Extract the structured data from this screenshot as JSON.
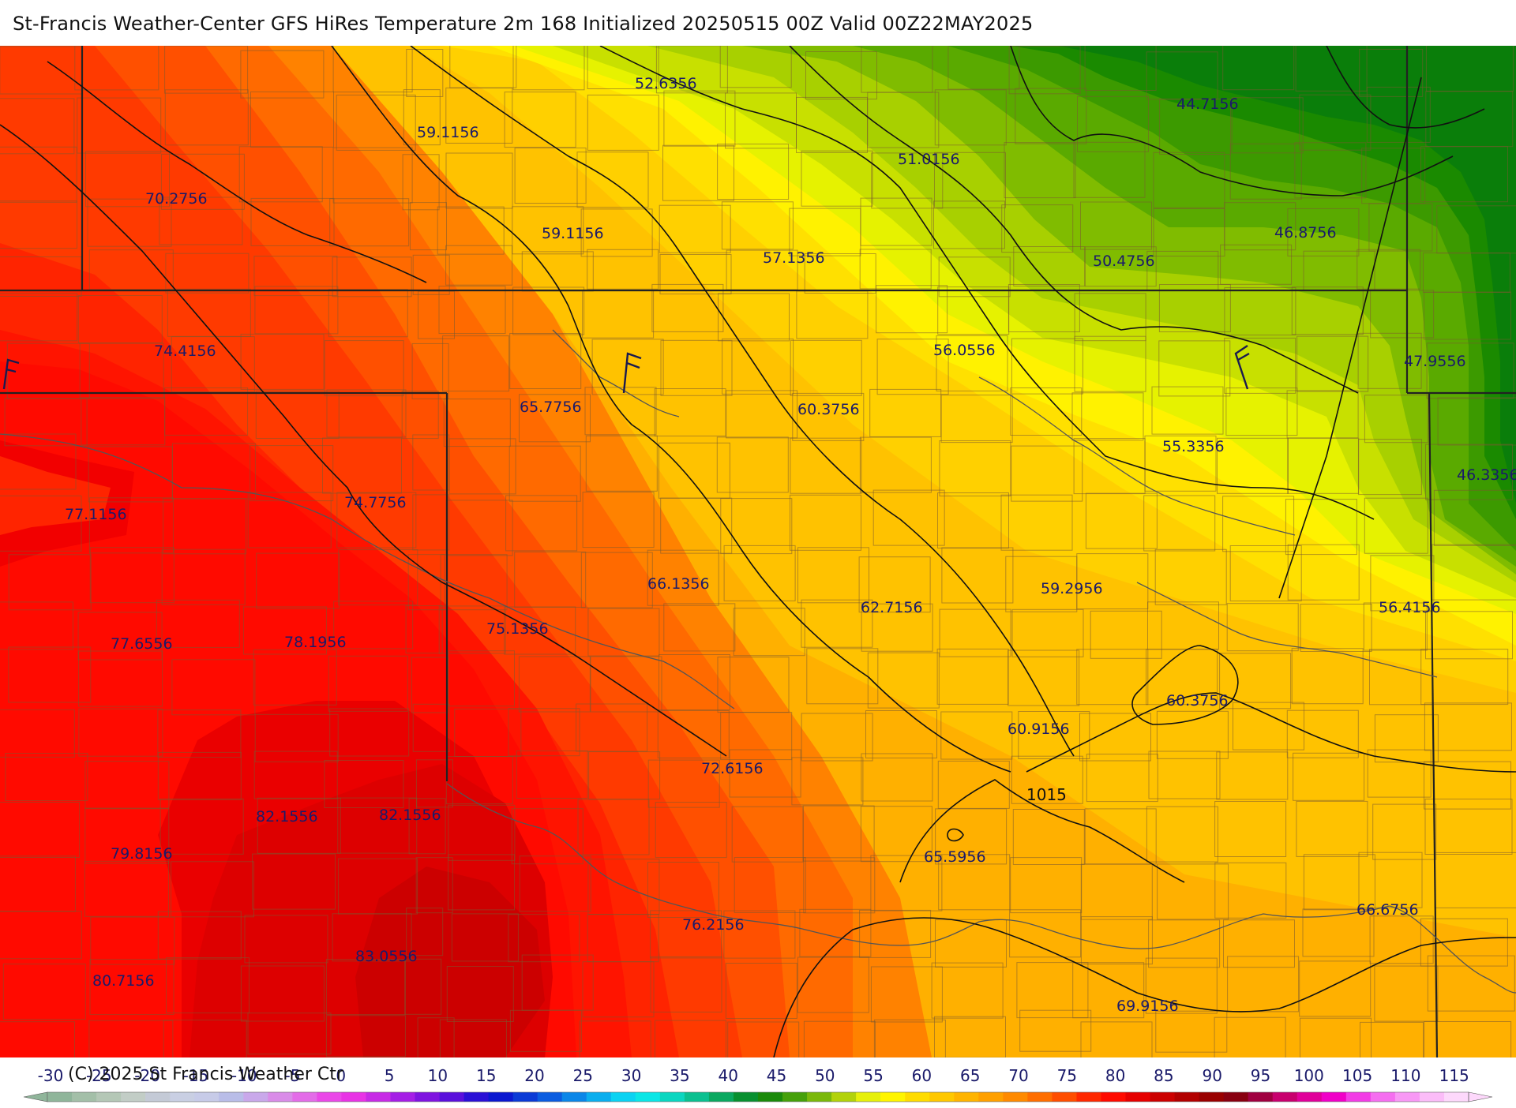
{
  "title": "St-Francis Weather-Center GFS HiRes Temperature 2m  168 Initialized 20250515 00Z Valid 00Z22MAY2025",
  "copyright": "(C) 2025 St Francis Weather Ctr",
  "isobar_label": "1015",
  "temperature_labels": [
    {
      "text": "52.6356"
    },
    {
      "text": "44.7156"
    },
    {
      "text": "59.1156"
    },
    {
      "text": "51.0156"
    },
    {
      "text": "70.2756"
    },
    {
      "text": "59.1156"
    },
    {
      "text": "57.1356"
    },
    {
      "text": "46.8756"
    },
    {
      "text": "50.4756"
    },
    {
      "text": "74.4156"
    },
    {
      "text": "56.0556"
    },
    {
      "text": "47.9556"
    },
    {
      "text": "65.7756"
    },
    {
      "text": "60.3756"
    },
    {
      "text": "55.3356"
    },
    {
      "text": "46.3356"
    },
    {
      "text": "77.1156"
    },
    {
      "text": "74.7756"
    },
    {
      "text": "66.1356"
    },
    {
      "text": "62.7156"
    },
    {
      "text": "59.2956"
    },
    {
      "text": "56.4156"
    },
    {
      "text": "77.6556"
    },
    {
      "text": "78.1956"
    },
    {
      "text": "75.1356"
    },
    {
      "text": "60.3756"
    },
    {
      "text": "60.9156"
    },
    {
      "text": "72.6156"
    },
    {
      "text": "82.1556"
    },
    {
      "text": "82.1556"
    },
    {
      "text": "79.8156"
    },
    {
      "text": "65.5956"
    },
    {
      "text": "76.2156"
    },
    {
      "text": "66.6756"
    },
    {
      "text": "83.0556"
    },
    {
      "text": "80.7156"
    },
    {
      "text": "69.9156"
    }
  ],
  "colorbar": {
    "ticks": [
      "-30",
      "-25",
      "-20",
      "-15",
      "-10",
      "-5",
      "0",
      "5",
      "10",
      "15",
      "20",
      "25",
      "30",
      "35",
      "40",
      "45",
      "50",
      "55",
      "60",
      "65",
      "70",
      "75",
      "80",
      "85",
      "90",
      "95",
      "100",
      "105",
      "110",
      "115"
    ],
    "colors": [
      "#8fb59a",
      "#a3bfa8",
      "#b4c7b6",
      "#c2cdc6",
      "#c4cad6",
      "#c9cfe3",
      "#c7cbe8",
      "#b9bde8",
      "#c9a8ea",
      "#d98ce8",
      "#e36ce8",
      "#ea48e8",
      "#e833e5",
      "#c72ae6",
      "#a51ee6",
      "#7f14e0",
      "#5a10dc",
      "#2a10d6",
      "#0a18d0",
      "#0a3ad6",
      "#0a5ce0",
      "#0a86e8",
      "#0aaeee",
      "#0ad2f2",
      "#0ae6e6",
      "#0ad6c0",
      "#0ac090",
      "#0aa860",
      "#089030",
      "#1a8a0a",
      "#45a00a",
      "#7ab80a",
      "#b2d20a",
      "#e6f00a",
      "#fff500",
      "#ffdc00",
      "#ffc800",
      "#ffb400",
      "#ffa000",
      "#ff8a00",
      "#ff6e00",
      "#ff4e00",
      "#ff2800",
      "#ff0a00",
      "#e60000",
      "#cc0000",
      "#b20000",
      "#990000",
      "#880010",
      "#a00040",
      "#c8006e",
      "#e0009a",
      "#f000c8",
      "#f23ce6",
      "#f56ef0",
      "#f898f5",
      "#fbbcf8",
      "#fdd8fb"
    ]
  }
}
